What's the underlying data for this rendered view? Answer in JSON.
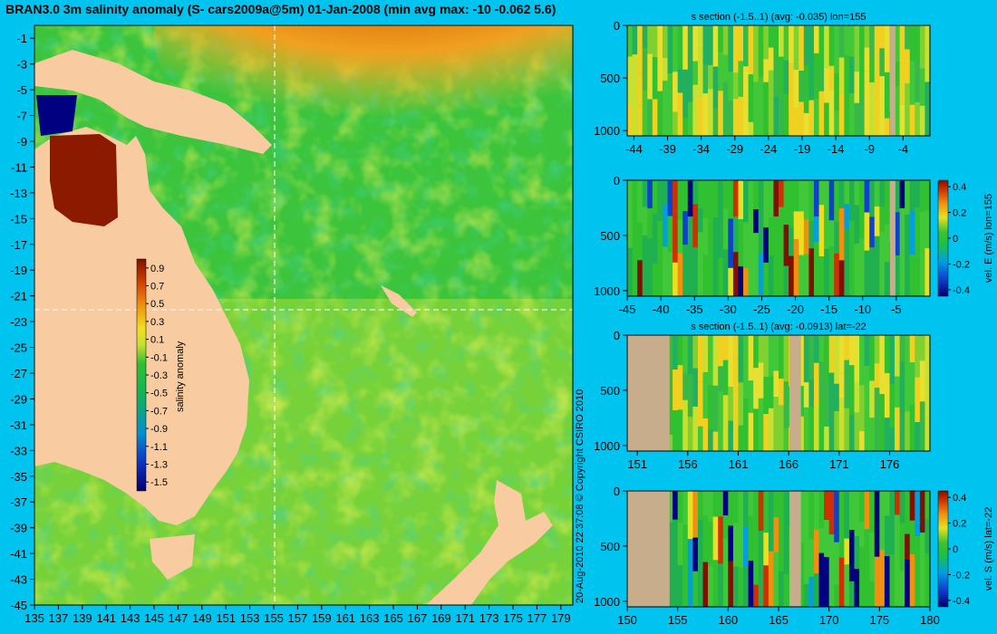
{
  "main_title": "BRAN3.0 3m salinity anomaly (S- cars2009a@5m) 01-Jan-2008 (min avg max: -10 -0.062 5.6)",
  "copyright": "20-Aug-2010 22:37:08   © Copyright CSIRO 2010",
  "colors": {
    "background": "#00c4f0",
    "land": "#f9cba0",
    "section_land": "#c8ad8c",
    "ocean_green": "#22c23a",
    "ocean_yellow": "#d8e832",
    "warm_orange": "#e88a10",
    "deep_red": "#8b1a00",
    "deep_blue": "#000080"
  },
  "chart_data": [
    {
      "id": "map",
      "type": "heatmap",
      "title": "BRAN3.0 3m salinity anomaly (S- cars2009a@5m) 01-Jan-2008 (min avg max: -10 -0.062 5.6)",
      "x_ticks": [
        "135",
        "137",
        "139",
        "141",
        "143",
        "145",
        "147",
        "149",
        "151",
        "153",
        "155",
        "157",
        "159",
        "161",
        "163",
        "165",
        "167",
        "169",
        "171",
        "173",
        "175",
        "177",
        "179"
      ],
      "y_ticks": [
        "-1",
        "-3",
        "-5",
        "-7",
        "-9",
        "-11",
        "-13",
        "-15",
        "-17",
        "-19",
        "-21",
        "-23",
        "-25",
        "-27",
        "-29",
        "-31",
        "-33",
        "-35",
        "-37",
        "-39",
        "-41",
        "-43",
        "-45"
      ],
      "xlim": [
        135,
        180
      ],
      "ylim": [
        -45,
        0
      ],
      "section_lon": 155,
      "section_lat": -22,
      "colorbar": {
        "label": "salinity anomaly",
        "ticks": [
          "0.9",
          "0.7",
          "0.5",
          "0.3",
          "0.1",
          "-0.1",
          "-0.3",
          "-0.5",
          "-0.7",
          "-0.9",
          "-1.1",
          "-1.3",
          "-1.5"
        ],
        "range": [
          -1.6,
          1.0
        ]
      }
    },
    {
      "id": "s-section-lon",
      "type": "heatmap",
      "title": "s section (-1.5..1) (avg: -0.035) lon=155",
      "x_ticks": [
        "-44",
        "-39",
        "-34",
        "-29",
        "-24",
        "-19",
        "-14",
        "-9",
        "-4"
      ],
      "y_ticks": [
        "0",
        "500",
        "1000"
      ],
      "xlim": [
        -45,
        0
      ],
      "ylim": [
        1050,
        0
      ]
    },
    {
      "id": "velE-section-lon",
      "type": "heatmap",
      "title": "",
      "side_label": "vel. E (m/s) lon=155",
      "x_ticks": [
        "-45",
        "-40",
        "-35",
        "-30",
        "-25",
        "-20",
        "-15",
        "-10",
        "-5"
      ],
      "y_ticks": [
        "0",
        "500",
        "1000"
      ],
      "xlim": [
        -45,
        0
      ],
      "ylim": [
        1050,
        0
      ],
      "colorbar": {
        "ticks": [
          "0.4",
          "0.2",
          "0",
          "-0.2",
          "-0.4"
        ],
        "range": [
          -0.45,
          0.45
        ]
      }
    },
    {
      "id": "s-section-lat",
      "type": "heatmap",
      "title": "s section (-1.5..1) (avg: -0.0913) lat=-22",
      "x_ticks": [
        "151",
        "156",
        "161",
        "166",
        "171",
        "176"
      ],
      "y_ticks": [
        "0",
        "500",
        "1000"
      ],
      "xlim": [
        150,
        180
      ],
      "ylim": [
        1050,
        0
      ]
    },
    {
      "id": "velS-section-lat",
      "type": "heatmap",
      "title": "",
      "side_label": "vel. S (m/s) lat=-22",
      "x_ticks": [
        "150",
        "155",
        "160",
        "165",
        "170",
        "175",
        "180"
      ],
      "y_ticks": [
        "0",
        "500",
        "1000"
      ],
      "xlim": [
        150,
        180
      ],
      "ylim": [
        1050,
        0
      ],
      "colorbar": {
        "ticks": [
          "0.4",
          "0.2",
          "0",
          "-0.2",
          "-0.4"
        ],
        "range": [
          -0.45,
          0.45
        ]
      }
    }
  ]
}
